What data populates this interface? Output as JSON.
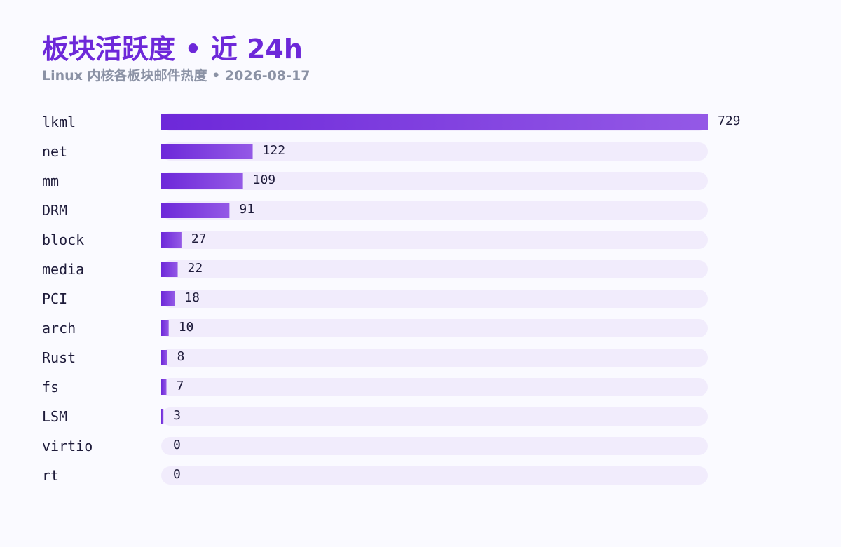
{
  "header": {
    "title": "板块活跃度 • 近 24h",
    "subtitle": "Linux 内核各板块邮件热度 • 2026-08-17"
  },
  "colors": {
    "title": "#6d28d9",
    "subtitle": "#8b92a5",
    "track": "#f1ecfc",
    "bar_start": "#6d28d9",
    "bar_end": "#9459e6",
    "text": "#1e1b3a"
  },
  "chart_data": {
    "type": "bar",
    "orientation": "horizontal",
    "title": "板块活跃度 • 近 24h",
    "subtitle": "Linux 内核各板块邮件热度 • 2026-08-17",
    "categories": [
      "lkml",
      "net",
      "mm",
      "DRM",
      "block",
      "media",
      "PCI",
      "arch",
      "Rust",
      "fs",
      "LSM",
      "virtio",
      "rt"
    ],
    "values": [
      729,
      122,
      109,
      91,
      27,
      22,
      18,
      10,
      8,
      7,
      3,
      0,
      0
    ],
    "xlim": [
      0,
      729
    ],
    "grid": false,
    "legend": "none",
    "data_labels": true
  }
}
